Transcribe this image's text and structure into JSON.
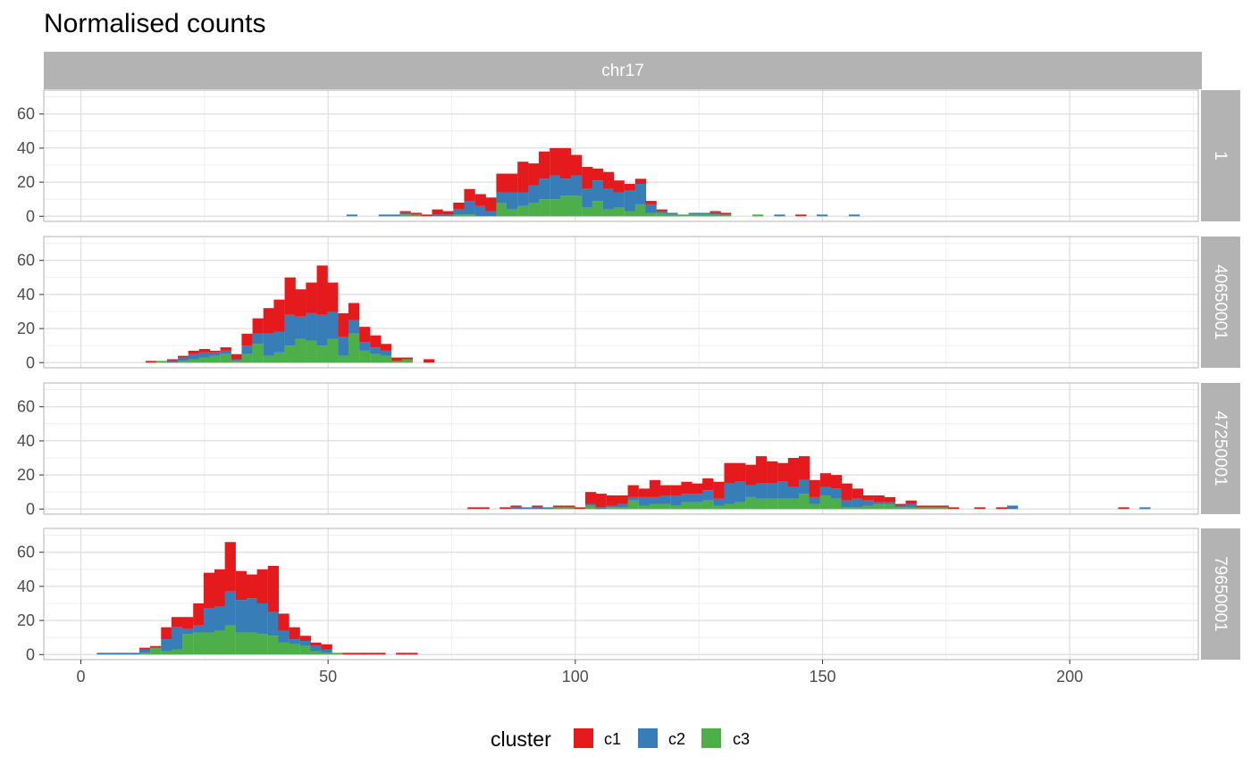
{
  "title": "Normalised counts",
  "colors": {
    "c1": "#E41A1C",
    "c2": "#377EB8",
    "c3": "#4DAF4A",
    "strip": "#b3b3b3",
    "grid_major": "#dedede",
    "grid_minor": "#ececec",
    "panel_border": "#b3b3b3"
  },
  "legend": {
    "title": "cluster",
    "items": [
      {
        "label": "c1",
        "color": "#E41A1C"
      },
      {
        "label": "c2",
        "color": "#377EB8"
      },
      {
        "label": "c3",
        "color": "#4DAF4A"
      }
    ]
  },
  "chart_data": {
    "type": "bar",
    "subtype": "stacked-histogram",
    "title": "Normalised counts",
    "column_facet": "chr17",
    "xlabel": "",
    "ylabel": "",
    "xlim": [
      -7.5,
      226
    ],
    "ylim": [
      -3,
      74
    ],
    "x_ticks": [
      0,
      50,
      100,
      150,
      200
    ],
    "y_ticks": [
      0,
      20,
      40,
      60
    ],
    "bin_width": 2.16,
    "grid": true,
    "legend_position": "bottom",
    "series_names": [
      "c1",
      "c2",
      "c3"
    ],
    "panels": [
      {
        "label": "1",
        "bins": [
          [
            54.8,
            0,
            1,
            0
          ],
          [
            61.3,
            0,
            1,
            0
          ],
          [
            63.5,
            0,
            1,
            0
          ],
          [
            65.6,
            1,
            1,
            1
          ],
          [
            67.8,
            1,
            0,
            1
          ],
          [
            69.9,
            1,
            0,
            0
          ],
          [
            72.1,
            3,
            1,
            0
          ],
          [
            74.3,
            2,
            1,
            0
          ],
          [
            76.4,
            4,
            3,
            1
          ],
          [
            78.6,
            7,
            8,
            1
          ],
          [
            80.8,
            7,
            6,
            0
          ],
          [
            82.9,
            8,
            3,
            0
          ],
          [
            85.1,
            11,
            6,
            8
          ],
          [
            87.2,
            11,
            10,
            4
          ],
          [
            89.4,
            18,
            8,
            6
          ],
          [
            91.6,
            13,
            10,
            8
          ],
          [
            93.7,
            16,
            12,
            10
          ],
          [
            95.9,
            16,
            14,
            10
          ],
          [
            98.0,
            18,
            10,
            12
          ],
          [
            100.2,
            12,
            12,
            12
          ],
          [
            102.4,
            13,
            11,
            5
          ],
          [
            104.5,
            7,
            12,
            9
          ],
          [
            106.7,
            10,
            12,
            4
          ],
          [
            108.8,
            7,
            9,
            5
          ],
          [
            111.0,
            4,
            12,
            3
          ],
          [
            113.2,
            3,
            12,
            7
          ],
          [
            115.3,
            2,
            5,
            2
          ],
          [
            117.5,
            1,
            1,
            2
          ],
          [
            119.6,
            0,
            1,
            1
          ],
          [
            121.8,
            0,
            0,
            1
          ],
          [
            124.0,
            0,
            1,
            1
          ],
          [
            126.1,
            0,
            1,
            1
          ],
          [
            128.3,
            1,
            1,
            1
          ],
          [
            130.4,
            1,
            0,
            1
          ],
          [
            136.9,
            0,
            0,
            1
          ],
          [
            141.3,
            0,
            1,
            0
          ],
          [
            145.6,
            1,
            0,
            0
          ],
          [
            149.9,
            0,
            1,
            0
          ],
          [
            156.4,
            0,
            1,
            0
          ]
        ]
      },
      {
        "label": "40650001",
        "bins": [
          [
            14.2,
            1,
            0,
            0
          ],
          [
            16.3,
            0,
            0,
            1
          ],
          [
            18.5,
            1,
            1,
            0
          ],
          [
            20.7,
            1,
            2,
            1
          ],
          [
            22.8,
            2,
            3,
            2
          ],
          [
            25.0,
            2,
            3,
            3
          ],
          [
            27.1,
            1,
            2,
            4
          ],
          [
            29.3,
            2,
            2,
            5
          ],
          [
            31.5,
            3,
            1,
            1
          ],
          [
            33.6,
            7,
            5,
            5
          ],
          [
            35.8,
            9,
            6,
            11
          ],
          [
            38.0,
            15,
            13,
            4
          ],
          [
            40.1,
            19,
            12,
            6
          ],
          [
            42.3,
            22,
            18,
            10
          ],
          [
            44.4,
            16,
            13,
            14
          ],
          [
            46.6,
            18,
            16,
            13
          ],
          [
            48.8,
            29,
            18,
            10
          ],
          [
            50.9,
            17,
            16,
            14
          ],
          [
            53.1,
            14,
            11,
            4
          ],
          [
            55.2,
            10,
            8,
            17
          ],
          [
            57.4,
            9,
            5,
            7
          ],
          [
            59.6,
            7,
            4,
            5
          ],
          [
            61.7,
            4,
            3,
            4
          ],
          [
            63.9,
            2,
            0,
            1
          ],
          [
            66.0,
            1,
            0,
            2
          ],
          [
            70.4,
            2,
            0,
            0
          ]
        ]
      },
      {
        "label": "47250001",
        "bins": [
          [
            79.3,
            1,
            0,
            0
          ],
          [
            81.5,
            1,
            0,
            0
          ],
          [
            85.8,
            1,
            0,
            0
          ],
          [
            88.0,
            1,
            1,
            0
          ],
          [
            90.1,
            0,
            1,
            0
          ],
          [
            92.3,
            1,
            1,
            0
          ],
          [
            94.5,
            0,
            1,
            0
          ],
          [
            96.6,
            1,
            0,
            1
          ],
          [
            98.8,
            1,
            0,
            1
          ],
          [
            100.9,
            1,
            0,
            0
          ],
          [
            103.1,
            7,
            1,
            2
          ],
          [
            105.2,
            8,
            1,
            0
          ],
          [
            107.4,
            6,
            1,
            1
          ],
          [
            109.6,
            5,
            2,
            1
          ],
          [
            111.7,
            7,
            2,
            5
          ],
          [
            113.9,
            5,
            5,
            2
          ],
          [
            116.1,
            10,
            4,
            3
          ],
          [
            118.2,
            6,
            5,
            3
          ],
          [
            120.4,
            6,
            6,
            2
          ],
          [
            122.5,
            7,
            5,
            4
          ],
          [
            124.7,
            6,
            5,
            4
          ],
          [
            126.8,
            7,
            6,
            5
          ],
          [
            129.0,
            10,
            4,
            2
          ],
          [
            131.2,
            12,
            12,
            3
          ],
          [
            133.3,
            11,
            12,
            4
          ],
          [
            135.5,
            12,
            7,
            7
          ],
          [
            137.6,
            16,
            9,
            6
          ],
          [
            139.8,
            13,
            9,
            6
          ],
          [
            142.0,
            11,
            10,
            6
          ],
          [
            144.1,
            17,
            7,
            6
          ],
          [
            146.3,
            14,
            8,
            9
          ],
          [
            148.4,
            10,
            4,
            3
          ],
          [
            150.6,
            8,
            5,
            8
          ],
          [
            152.8,
            8,
            6,
            6
          ],
          [
            154.9,
            10,
            4,
            1
          ],
          [
            157.1,
            6,
            5,
            1
          ],
          [
            159.2,
            3,
            3,
            2
          ],
          [
            161.4,
            4,
            1,
            3
          ],
          [
            163.6,
            3,
            1,
            3
          ],
          [
            165.7,
            1,
            1,
            1
          ],
          [
            167.9,
            2,
            2,
            1
          ],
          [
            170.0,
            1,
            0,
            1
          ],
          [
            172.2,
            1,
            0,
            1
          ],
          [
            174.4,
            1,
            0,
            1
          ],
          [
            176.5,
            1,
            0,
            0
          ],
          [
            181.8,
            1,
            0,
            0
          ],
          [
            186.2,
            1,
            0,
            0
          ],
          [
            188.4,
            0,
            2,
            0
          ],
          [
            210.9,
            1,
            0,
            0
          ],
          [
            215.2,
            0,
            1,
            0
          ]
        ]
      },
      {
        "label": "79650001",
        "bins": [
          [
            4.3,
            0,
            1,
            0
          ],
          [
            6.5,
            0,
            1,
            0
          ],
          [
            8.6,
            0,
            1,
            0
          ],
          [
            10.8,
            0,
            1,
            0
          ],
          [
            12.9,
            1,
            2,
            1
          ],
          [
            15.1,
            1,
            0,
            4
          ],
          [
            17.3,
            7,
            7,
            2
          ],
          [
            19.4,
            6,
            13,
            3
          ],
          [
            21.6,
            7,
            3,
            12
          ],
          [
            23.8,
            13,
            4,
            13
          ],
          [
            25.9,
            21,
            14,
            13
          ],
          [
            28.1,
            22,
            14,
            14
          ],
          [
            30.2,
            29,
            20,
            17
          ],
          [
            32.4,
            17,
            19,
            13
          ],
          [
            34.6,
            14,
            20,
            13
          ],
          [
            36.7,
            20,
            18,
            12
          ],
          [
            38.9,
            27,
            14,
            11
          ],
          [
            41.0,
            10,
            7,
            7
          ],
          [
            43.2,
            7,
            3,
            6
          ],
          [
            45.4,
            3,
            3,
            5
          ],
          [
            47.5,
            2,
            3,
            2
          ],
          [
            49.7,
            3,
            2,
            1
          ],
          [
            51.8,
            0,
            0,
            1
          ],
          [
            54.0,
            1,
            0,
            0
          ],
          [
            56.2,
            1,
            0,
            0
          ],
          [
            58.3,
            1,
            0,
            0
          ],
          [
            60.5,
            1,
            0,
            0
          ],
          [
            64.8,
            1,
            0,
            0
          ],
          [
            67.0,
            1,
            0,
            0
          ]
        ]
      }
    ]
  }
}
